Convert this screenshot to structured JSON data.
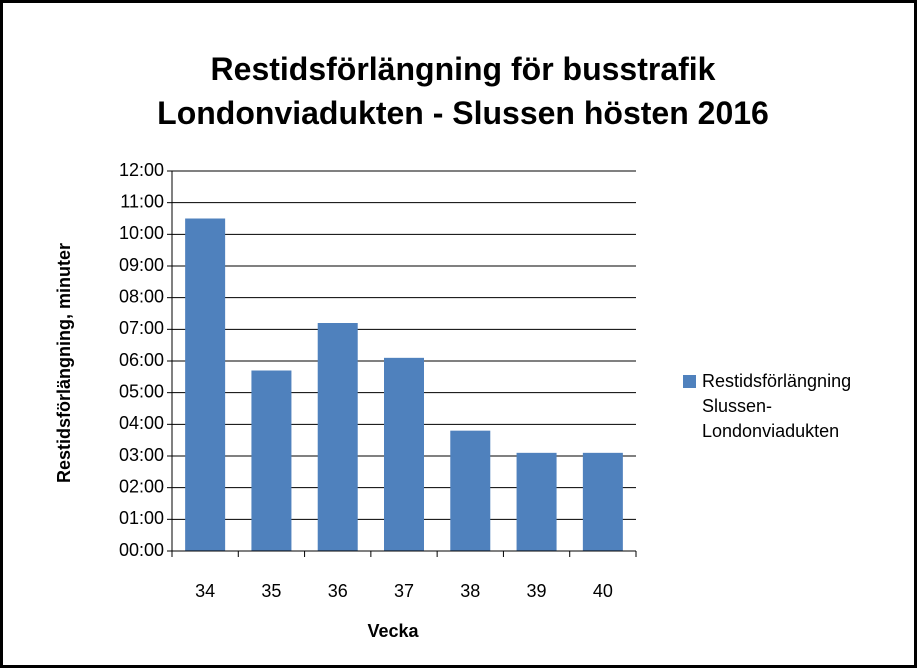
{
  "chart_data": {
    "type": "bar",
    "title": "Restidsförlängning för busstrafik Londonviadukten - Slussen hösten 2016",
    "x_label": "Vecka",
    "y_label": "Restidsförlängning, minuter",
    "categories": [
      "34",
      "35",
      "36",
      "37",
      "38",
      "39",
      "40"
    ],
    "series": [
      {
        "name": "Restidsförlängning Slussen-Londonviadukten",
        "color": "#4f81bd",
        "values": [
          10.5,
          5.7,
          7.2,
          6.1,
          3.8,
          3.1,
          3.1
        ]
      }
    ],
    "ylim": [
      0,
      12
    ],
    "yticks": [
      {
        "value": 0,
        "label": "00:00"
      },
      {
        "value": 1,
        "label": "01:00"
      },
      {
        "value": 2,
        "label": "02:00"
      },
      {
        "value": 3,
        "label": "03:00"
      },
      {
        "value": 4,
        "label": "04:00"
      },
      {
        "value": 5,
        "label": "05:00"
      },
      {
        "value": 6,
        "label": "06:00"
      },
      {
        "value": 7,
        "label": "07:00"
      },
      {
        "value": 8,
        "label": "08:00"
      },
      {
        "value": 9,
        "label": "09:00"
      },
      {
        "value": 10,
        "label": "10:00"
      },
      {
        "value": 11,
        "label": "11:00"
      },
      {
        "value": 12,
        "label": "12:00"
      }
    ],
    "grid": true,
    "legend": "right"
  }
}
